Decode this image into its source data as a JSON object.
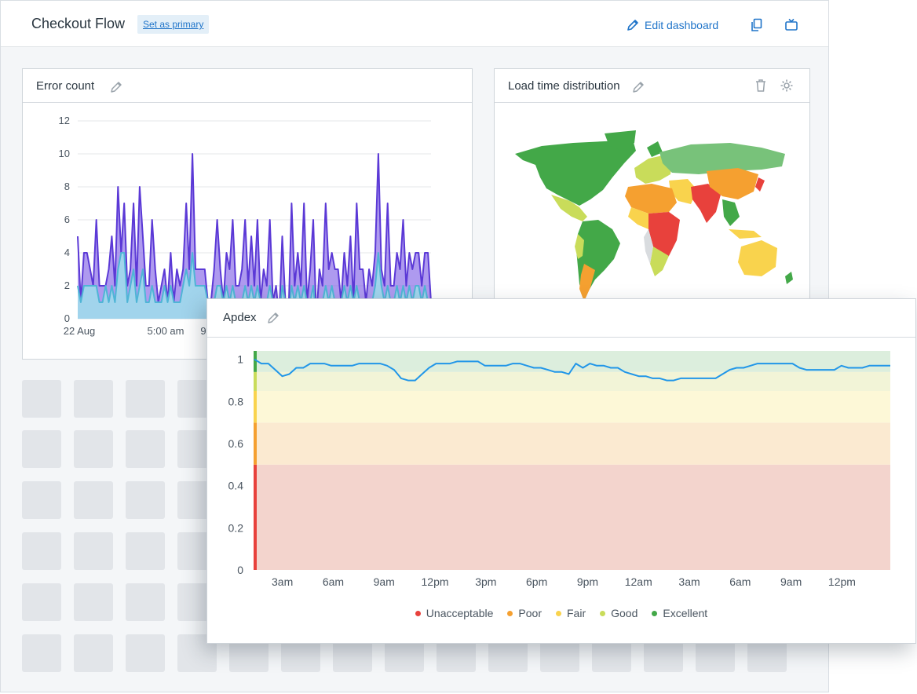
{
  "header": {
    "title": "Checkout Flow",
    "set_primary_label": "Set as primary",
    "edit_label": "Edit dashboard"
  },
  "panels": {
    "error_count": {
      "title": "Error count"
    },
    "load_time": {
      "title": "Load time distribution"
    },
    "apdex": {
      "title": "Apdex"
    }
  },
  "colors": {
    "accent": "#1f74c9",
    "unacceptable": "#e8413c",
    "poor": "#f5a030",
    "fair": "#f9d34d",
    "good": "#c9dc5a",
    "excellent": "#43a848",
    "series_purple": "#5b39d6",
    "series_cyan": "#4fb5d6"
  },
  "chart_data": [
    {
      "type": "area",
      "title": "Error count",
      "ylim": [
        0,
        12
      ],
      "yticks": [
        "0",
        "2",
        "4",
        "6",
        "8",
        "10",
        "12"
      ],
      "xticks": [
        "22 Aug",
        "5:00 am",
        "9"
      ],
      "grid": true,
      "series": [
        {
          "values": [
            5,
            1,
            4,
            4,
            3,
            2,
            6,
            2,
            2,
            2,
            3,
            5,
            2,
            8,
            4,
            7,
            2,
            3,
            7,
            2,
            8,
            5,
            2,
            2,
            6,
            3,
            1,
            2,
            3,
            1,
            4,
            1,
            3,
            2,
            3,
            7,
            3,
            10,
            3,
            3,
            3,
            3,
            1,
            1,
            3,
            6,
            3,
            1,
            4,
            3,
            6,
            2,
            2,
            3,
            6,
            2,
            5,
            2,
            6,
            1,
            3,
            2,
            6,
            1,
            2,
            0,
            5,
            1,
            0,
            7,
            2,
            4,
            2,
            7,
            1,
            3,
            6,
            0,
            3,
            2,
            7,
            3,
            4,
            3,
            3,
            1,
            4,
            2,
            5,
            1,
            7,
            3,
            3,
            1,
            3,
            2,
            4,
            10,
            3,
            2,
            7,
            2,
            2,
            4,
            3,
            6,
            2,
            4,
            3,
            4,
            4,
            2,
            4,
            4,
            1
          ]
        },
        {
          "values": [
            2,
            1,
            2,
            2,
            2,
            2,
            2,
            1,
            1,
            2,
            1,
            2,
            1,
            3,
            4,
            4,
            1,
            2,
            3,
            1,
            2,
            3,
            1,
            1,
            2,
            1,
            1,
            1,
            2,
            1,
            2,
            1,
            1,
            1,
            2,
            3,
            2,
            4,
            2,
            2,
            2,
            2,
            1,
            1,
            1,
            2,
            2,
            1,
            2,
            1,
            2,
            1,
            1,
            1,
            2,
            1,
            2,
            1,
            2,
            1,
            1,
            1,
            2,
            1,
            1,
            0,
            2,
            1,
            0,
            2,
            1,
            2,
            1,
            2,
            1,
            1,
            2,
            0,
            1,
            1,
            2,
            1,
            2,
            1,
            1,
            1,
            2,
            1,
            2,
            1,
            2,
            1,
            1,
            1,
            1,
            1,
            2,
            4,
            2,
            1,
            2,
            1,
            1,
            2,
            1,
            2,
            1,
            2,
            1,
            2,
            2,
            1,
            2,
            1,
            1
          ]
        }
      ]
    },
    {
      "type": "line",
      "title": "Apdex",
      "ylim": [
        0,
        1.04
      ],
      "yticks": [
        "0",
        "0.2",
        "0.4",
        "0.6",
        "0.8",
        "1"
      ],
      "xticks": [
        "3am",
        "6am",
        "9am",
        "12pm",
        "3pm",
        "6pm",
        "9pm",
        "12am",
        "3am",
        "6am",
        "9am",
        "12pm"
      ],
      "bands": [
        {
          "name": "Unacceptable",
          "from": 0,
          "to": 0.5,
          "fill": "#f3d4cd",
          "edge": "#e8413c"
        },
        {
          "name": "Poor",
          "from": 0.5,
          "to": 0.7,
          "fill": "#fbead1",
          "edge": "#f5a030"
        },
        {
          "name": "Fair",
          "from": 0.7,
          "to": 0.85,
          "fill": "#fdf8d7",
          "edge": "#f9d34d"
        },
        {
          "name": "Good",
          "from": 0.85,
          "to": 0.94,
          "fill": "#f2f4d7",
          "edge": "#c9dc5a"
        },
        {
          "name": "Excellent",
          "from": 0.94,
          "to": 1.04,
          "fill": "#dceedd",
          "edge": "#43a848"
        }
      ],
      "legend": [
        "Unacceptable",
        "Poor",
        "Fair",
        "Good",
        "Excellent"
      ],
      "values": [
        1,
        0.98,
        0.98,
        0.95,
        0.92,
        0.93,
        0.96,
        0.96,
        0.98,
        0.98,
        0.98,
        0.97,
        0.97,
        0.97,
        0.97,
        0.98,
        0.98,
        0.98,
        0.98,
        0.97,
        0.95,
        0.91,
        0.9,
        0.9,
        0.93,
        0.96,
        0.98,
        0.98,
        0.98,
        0.99,
        0.99,
        0.99,
        0.99,
        0.97,
        0.97,
        0.97,
        0.97,
        0.98,
        0.98,
        0.97,
        0.96,
        0.96,
        0.95,
        0.94,
        0.94,
        0.93,
        0.98,
        0.96,
        0.98,
        0.97,
        0.97,
        0.96,
        0.96,
        0.94,
        0.93,
        0.92,
        0.92,
        0.91,
        0.91,
        0.9,
        0.9,
        0.91,
        0.91,
        0.91,
        0.91,
        0.91,
        0.91,
        0.93,
        0.95,
        0.96,
        0.96,
        0.97,
        0.98,
        0.98,
        0.98,
        0.98,
        0.98,
        0.98,
        0.96,
        0.95,
        0.95,
        0.95,
        0.95,
        0.95,
        0.97,
        0.96,
        0.96,
        0.96,
        0.97,
        0.97,
        0.97,
        0.97
      ]
    }
  ]
}
